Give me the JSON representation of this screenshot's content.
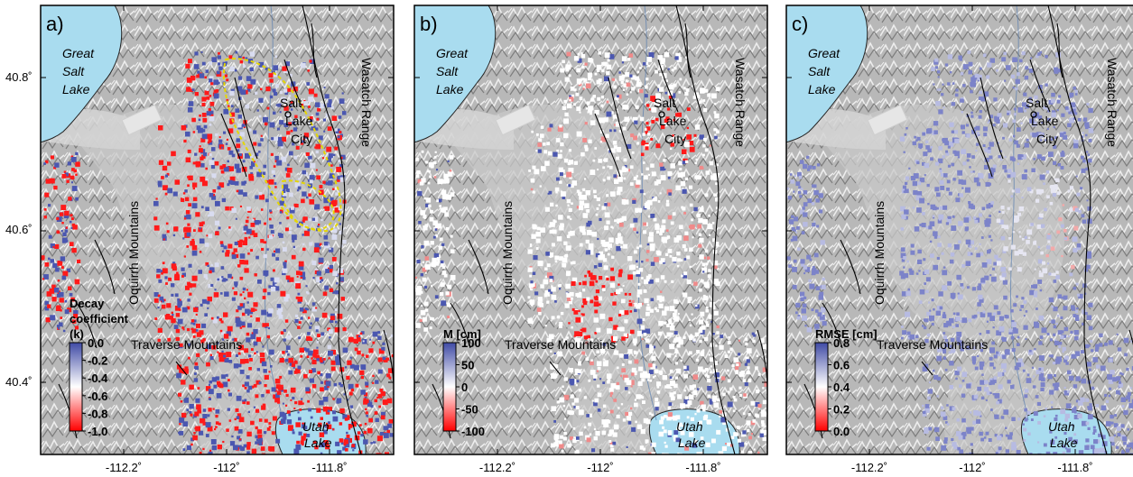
{
  "figure": {
    "lat_ticks": [
      "40.8˚",
      "40.6˚",
      "40.4˚"
    ],
    "lon_ticks": [
      "-112.2˚",
      "-112˚",
      "-111.8˚"
    ],
    "places": {
      "great_salt_lake": [
        "Great",
        "Salt",
        "Lake"
      ],
      "salt_lake_city": [
        "Salt",
        "Lake",
        "City"
      ],
      "wasatch_range": "Wasatch Range",
      "oquirrh_mountains": "Oquirrh Mountains",
      "traverse_mountains": "Traverse Mountains",
      "utah_lake": [
        "Utah",
        "Lake"
      ]
    },
    "colors": {
      "water": "#a9dcef",
      "relief_base": "#b9b9b9",
      "valley": "#c8c8c8",
      "positive": "#4b57b0",
      "negative": "#ff1a1a",
      "fault": "#000000",
      "boundary_dashed": "#e5d600"
    }
  },
  "panels": [
    {
      "id": "a",
      "letter": "a)",
      "mode": "decay",
      "colorbar": {
        "title": [
          "Decay",
          "coefficient",
          "(k)"
        ],
        "ticks": [
          "0.0",
          "-0.2",
          "-0.4",
          "-0.6",
          "-0.8",
          "-1.0"
        ],
        "gradient": [
          "#3f4aa5",
          "#ffffff",
          "#ff0000"
        ]
      }
    },
    {
      "id": "b",
      "letter": "b)",
      "mode": "amplitude",
      "colorbar": {
        "title": [
          "M [cm]"
        ],
        "ticks": [
          "100",
          "50",
          "0",
          "-50",
          "-100"
        ],
        "gradient": [
          "#3f4aa5",
          "#ffffff",
          "#ff0000"
        ]
      }
    },
    {
      "id": "c",
      "letter": "c)",
      "mode": "rmse",
      "colorbar": {
        "title": [
          "RMSE [cm]"
        ],
        "ticks": [
          "0.8",
          "0.6",
          "0.4",
          "0.2",
          "0.0"
        ],
        "gradient": [
          "#3f4aa5",
          "#ffffff",
          "#ff0000"
        ]
      }
    }
  ]
}
